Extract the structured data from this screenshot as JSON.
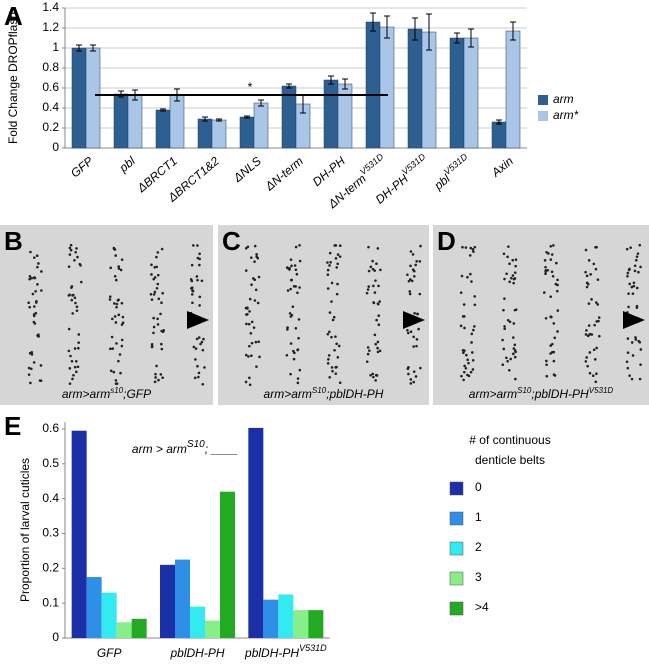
{
  "chart_data": [
    {
      "type": "bar",
      "panel": "A",
      "ylabel": "Fold Change DROPflash",
      "categories": [
        [
          {
            "t": "GFP"
          }
        ],
        [
          {
            "t": "pbl"
          }
        ],
        [
          {
            "t": "ΔBRCT1"
          }
        ],
        [
          {
            "t": "ΔBRCT1&2"
          }
        ],
        [
          {
            "t": "ΔNLS"
          }
        ],
        [
          {
            "t": "ΔN-term"
          }
        ],
        [
          {
            "t": "DH-PH"
          }
        ],
        [
          {
            "t": "ΔN-term"
          },
          {
            "t": "V531D",
            "sup": true
          }
        ],
        [
          {
            "t": "DH-PH"
          },
          {
            "t": "V531D",
            "sup": true
          }
        ],
        [
          {
            "t": "pbl"
          },
          {
            "t": "V531D",
            "sup": true
          }
        ],
        [
          {
            "t": "Axin"
          }
        ]
      ],
      "series": [
        {
          "name": "arm",
          "color": "#2e5f91",
          "values": [
            1.0,
            0.54,
            0.38,
            0.29,
            0.31,
            0.62,
            0.68,
            1.26,
            1.19,
            1.1,
            0.26
          ],
          "errors": [
            0.03,
            0.03,
            0.01,
            0.02,
            0.01,
            0.02,
            0.04,
            0.09,
            0.11,
            0.05,
            0.02
          ]
        },
        {
          "name": "arm*",
          "color": "#a9c6e8",
          "values": [
            1.0,
            0.53,
            0.53,
            0.28,
            0.45,
            0.44,
            0.64,
            1.21,
            1.16,
            1.1,
            1.17
          ],
          "errors": [
            0.03,
            0.05,
            0.06,
            0.01,
            0.03,
            0.09,
            0.05,
            0.11,
            0.18,
            0.09,
            0.09
          ]
        }
      ],
      "ylim": [
        0,
        1.4
      ],
      "yticks": [
        0,
        0.2,
        0.4,
        0.6,
        0.8,
        1,
        1.2,
        1.4
      ],
      "grid": true,
      "annotations": [
        "*",
        "*"
      ]
    },
    {
      "type": "bar",
      "panel": "E",
      "ylabel": "Proportion of larval cuticles",
      "subtitle": [
        {
          "t": "arm > arm"
        },
        {
          "t": "S10",
          "sup": true
        },
        {
          "t": "; ____"
        }
      ],
      "categories": [
        [
          {
            "t": "GFP"
          }
        ],
        [
          {
            "t": "pblDH-PH"
          }
        ],
        [
          {
            "t": "pblDH-PH"
          },
          {
            "t": "V531D",
            "sup": true
          }
        ]
      ],
      "legend_title": [
        "# of continuous",
        "denticle belts"
      ],
      "series": [
        {
          "name": "0",
          "color": "#1a2fa8",
          "values": [
            0.595,
            0.21,
            0.603
          ]
        },
        {
          "name": "1",
          "color": "#2f8fe6",
          "values": [
            0.175,
            0.225,
            0.11
          ]
        },
        {
          "name": "2",
          "color": "#33eaf0",
          "values": [
            0.13,
            0.09,
            0.125
          ]
        },
        {
          "name": "3",
          "color": "#88ee88",
          "values": [
            0.045,
            0.05,
            0.08
          ]
        },
        {
          "name": ">4",
          "color": "#22aa22",
          "values": [
            0.055,
            0.42,
            0.08
          ]
        }
      ],
      "ylim": [
        0,
        0.62
      ],
      "yticks": [
        0,
        0.1,
        0.2,
        0.3,
        0.4,
        0.5,
        0.6
      ],
      "grid": false
    }
  ],
  "images": [
    {
      "panel": "B",
      "caption": [
        {
          "t": "arm>arm"
        },
        {
          "t": "s10",
          "sup": true
        },
        {
          "t": ";GFP"
        }
      ]
    },
    {
      "panel": "C",
      "caption": [
        {
          "t": "arm>arm"
        },
        {
          "t": "S10",
          "sup": true
        },
        {
          "t": ";pblDH-PH"
        }
      ]
    },
    {
      "panel": "D",
      "caption": [
        {
          "t": "arm>arm"
        },
        {
          "t": "S10",
          "sup": true
        },
        {
          "t": ";pblDH-PH"
        },
        {
          "t": "V531D",
          "sup": true
        }
      ]
    }
  ]
}
